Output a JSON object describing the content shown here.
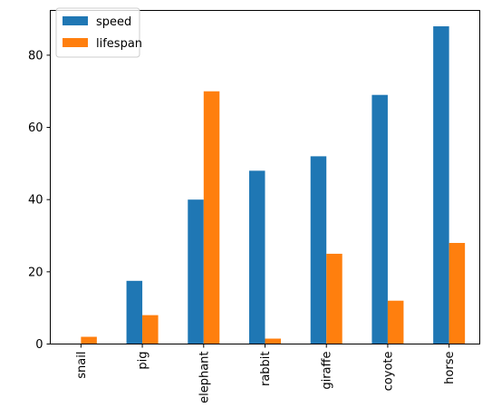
{
  "chart_data": {
    "type": "bar",
    "categories": [
      "snail",
      "pig",
      "elephant",
      "rabbit",
      "giraffe",
      "coyote",
      "horse"
    ],
    "series": [
      {
        "name": "speed",
        "values": [
          0.1,
          17.5,
          40,
          48,
          52,
          69,
          88
        ],
        "color": "#1f77b4"
      },
      {
        "name": "lifespan",
        "values": [
          2,
          8,
          70,
          1.5,
          25,
          12,
          28
        ],
        "color": "#ff7f0e"
      }
    ],
    "ylim": [
      0,
      92.4
    ],
    "yticks": [
      0,
      20,
      40,
      60,
      80
    ],
    "legend_position": "top-left",
    "grid": false
  }
}
